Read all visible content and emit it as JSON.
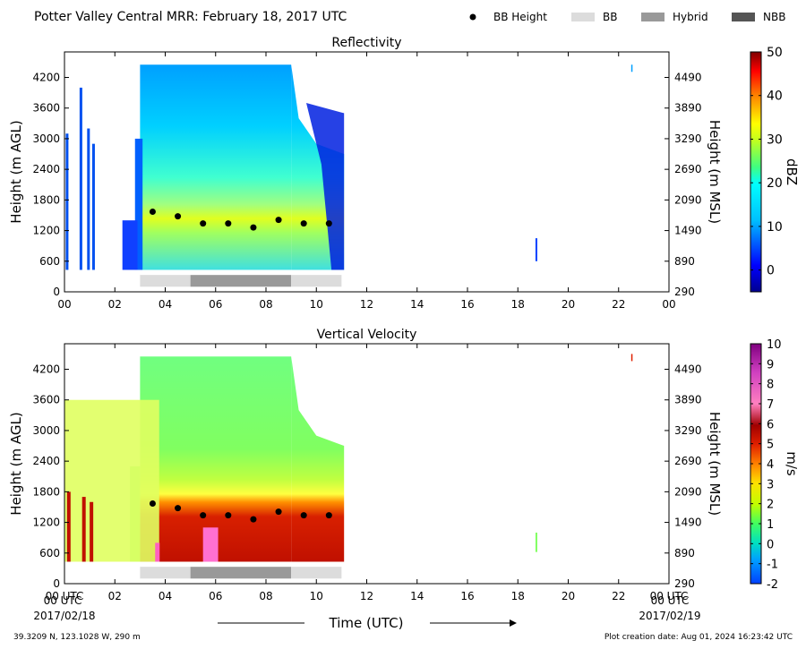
{
  "header": {
    "title": "Potter Valley Central MRR:  February 18, 2017 UTC",
    "legend": [
      {
        "label": "BB Height",
        "kind": "dot",
        "color": "#000000"
      },
      {
        "label": "BB",
        "kind": "patch",
        "color": "#dcdcdc"
      },
      {
        "label": "Hybrid",
        "kind": "patch",
        "color": "#999999"
      },
      {
        "label": "NBB",
        "kind": "patch",
        "color": "#555555"
      }
    ]
  },
  "footer": {
    "location": "39.3209 N, 123.1028 W, 290 m",
    "created": "Plot creation date: Aug 01, 2024 16:23:42 UTC",
    "xlabel": "Time (UTC)",
    "start_label_1": "00 UTC",
    "start_label_2": "2017/02/18",
    "end_label_1": "00 UTC",
    "end_label_2": "2017/02/19"
  },
  "chart_data": [
    {
      "type": "heatmap",
      "title": "Reflectivity",
      "xlabel": "",
      "ylabel": "Height (m AGL)",
      "ylabel_right": "Height (m MSL)",
      "xlim": [
        0,
        24
      ],
      "ylim": [
        0,
        4700
      ],
      "x_ticks": [
        "00",
        "02",
        "04",
        "06",
        "08",
        "10",
        "12",
        "14",
        "16",
        "18",
        "20",
        "22",
        "00"
      ],
      "y_ticks": [
        0,
        600,
        1200,
        1800,
        2400,
        3000,
        3600,
        4200
      ],
      "y_ticks_right": [
        290,
        890,
        1490,
        2090,
        2690,
        3290,
        3890,
        4490
      ],
      "colorbar": {
        "label": "dBZ",
        "range": [
          -5,
          50
        ],
        "ticks": [
          0,
          10,
          20,
          30,
          40,
          50
        ]
      },
      "bright_band_height": {
        "x": [
          3.5,
          4.5,
          5.5,
          6.5,
          7.5,
          8.5,
          9.5,
          10.5
        ],
        "y": [
          1570,
          1480,
          1340,
          1340,
          1260,
          1410,
          1340,
          1340
        ]
      },
      "bb_classification": [
        {
          "start": 3.0,
          "end": 5.0,
          "class": "BB"
        },
        {
          "start": 5.0,
          "end": 9.0,
          "class": "Hybrid"
        },
        {
          "start": 9.0,
          "end": 11.0,
          "class": "BB"
        }
      ]
    },
    {
      "type": "heatmap",
      "title": "Vertical Velocity",
      "xlabel": "Time (UTC)",
      "ylabel": "Height (m AGL)",
      "ylabel_right": "Height (m MSL)",
      "xlim": [
        0,
        24
      ],
      "ylim": [
        0,
        4700
      ],
      "x_ticks": [
        "00 UTC",
        "02",
        "04",
        "06",
        "08",
        "10",
        "12",
        "14",
        "16",
        "18",
        "20",
        "22",
        "00 UTC"
      ],
      "y_ticks": [
        0,
        600,
        1200,
        1800,
        2400,
        3000,
        3600,
        4200
      ],
      "y_ticks_right": [
        290,
        890,
        1490,
        2090,
        2690,
        3290,
        3890,
        4490
      ],
      "colorbar": {
        "label": "m/s",
        "range": [
          -2,
          10
        ],
        "ticks": [
          -2,
          -1,
          0,
          1,
          2,
          3,
          4,
          5,
          6,
          7,
          8,
          9,
          10
        ]
      },
      "bright_band_height": {
        "x": [
          3.5,
          4.5,
          5.5,
          6.5,
          7.5,
          8.5,
          9.5,
          10.5
        ],
        "y": [
          1570,
          1480,
          1340,
          1340,
          1260,
          1410,
          1340,
          1340
        ]
      },
      "bb_classification": [
        {
          "start": 3.0,
          "end": 5.0,
          "class": "BB"
        },
        {
          "start": 5.0,
          "end": 9.0,
          "class": "Hybrid"
        },
        {
          "start": 9.0,
          "end": 11.0,
          "class": "BB"
        }
      ]
    }
  ]
}
